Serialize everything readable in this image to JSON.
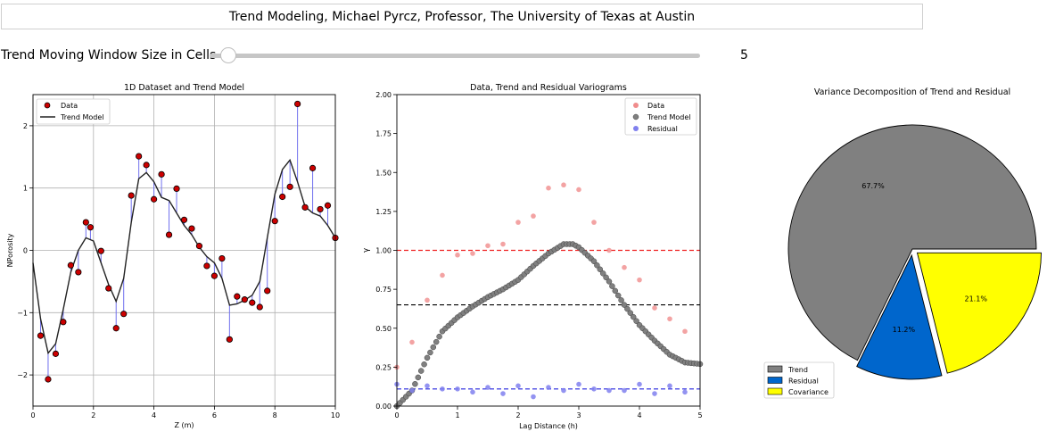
{
  "header": {
    "title": "Trend Modeling, Michael Pyrcz, Professor, The University of Texas at Austin"
  },
  "slider": {
    "label": "Trend Moving Window Size in Cells",
    "value": 5,
    "value_text": "5",
    "min": 1,
    "max": 100
  },
  "chart_data": [
    {
      "type": "scatter",
      "title": "1D Dataset and Trend Model",
      "xlabel": "Z (m)",
      "ylabel": "NPorosity",
      "xlim": [
        0,
        10
      ],
      "ylim": [
        -2.5,
        2.5
      ],
      "xticks": [
        0,
        2,
        4,
        6,
        8,
        10
      ],
      "yticks": [
        -2,
        -1,
        0,
        1,
        2
      ],
      "grid": true,
      "legend": "top-left",
      "series": [
        {
          "name": "Data",
          "color": "#cc0000",
          "x": [
            0.25,
            0.5,
            0.75,
            1.0,
            1.25,
            1.5,
            1.75,
            1.9,
            2.25,
            2.5,
            2.75,
            3.0,
            3.25,
            3.5,
            3.75,
            4.0,
            4.25,
            4.5,
            4.75,
            5.0,
            5.25,
            5.5,
            5.75,
            6.0,
            6.25,
            6.5,
            6.75,
            7.0,
            7.25,
            7.5,
            7.75,
            8.0,
            8.25,
            8.5,
            8.75,
            9.0,
            9.25,
            9.5,
            9.75,
            10.0
          ],
          "y": [
            -1.37,
            -2.07,
            -1.66,
            -1.15,
            -0.24,
            -0.35,
            0.45,
            0.37,
            -0.01,
            -0.61,
            -1.25,
            -1.02,
            0.88,
            1.51,
            1.37,
            0.82,
            1.22,
            0.25,
            0.99,
            0.49,
            0.35,
            0.07,
            -0.25,
            -0.41,
            -0.13,
            -1.43,
            -0.74,
            -0.79,
            -0.84,
            -0.91,
            -0.65,
            0.47,
            0.86,
            1.02,
            2.35,
            0.69,
            1.32,
            0.66,
            0.72,
            0.2
          ]
        },
        {
          "name": "Trend Model",
          "color": "#222222",
          "x": [
            0,
            0.25,
            0.5,
            0.75,
            1.0,
            1.25,
            1.5,
            1.75,
            2.0,
            2.25,
            2.5,
            2.75,
            3.0,
            3.25,
            3.5,
            3.75,
            4.0,
            4.25,
            4.5,
            4.75,
            5.0,
            5.25,
            5.5,
            5.75,
            6.0,
            6.25,
            6.5,
            6.75,
            7.0,
            7.25,
            7.5,
            7.75,
            8.0,
            8.25,
            8.5,
            8.75,
            9.0,
            9.25,
            9.5,
            9.75,
            10.0
          ],
          "y": [
            -0.2,
            -1.1,
            -1.65,
            -1.5,
            -0.95,
            -0.35,
            0.0,
            0.2,
            0.15,
            -0.2,
            -0.55,
            -0.82,
            -0.45,
            0.45,
            1.15,
            1.25,
            1.1,
            0.85,
            0.8,
            0.6,
            0.4,
            0.25,
            0.05,
            -0.1,
            -0.2,
            -0.45,
            -0.88,
            -0.86,
            -0.8,
            -0.72,
            -0.5,
            0.2,
            0.9,
            1.3,
            1.45,
            1.1,
            0.7,
            0.6,
            0.55,
            0.4,
            0.2
          ]
        }
      ]
    },
    {
      "type": "scatter",
      "title": "Data, Trend and Residual Variograms",
      "xlabel": "Lag Distance (h)",
      "ylabel": "γ",
      "xlim": [
        0,
        5
      ],
      "ylim": [
        0,
        2.0
      ],
      "xticks": [
        0,
        1,
        2,
        3,
        4,
        5
      ],
      "yticks": [
        0.0,
        0.25,
        0.5,
        0.75,
        1.0,
        1.25,
        1.5,
        1.75,
        2.0
      ],
      "legend": "top-right",
      "hlines": [
        {
          "y": 1.0,
          "color": "#ee2222"
        },
        {
          "y": 0.65,
          "color": "#000000"
        },
        {
          "y": 0.11,
          "color": "#2222dd"
        }
      ],
      "series": [
        {
          "name": "Data",
          "color": "#f08c8c",
          "x": [
            0,
            0.25,
            0.5,
            0.75,
            1.0,
            1.25,
            1.5,
            1.75,
            2.0,
            2.25,
            2.5,
            2.75,
            3.0,
            3.25,
            3.5,
            3.75,
            4.0,
            4.25,
            4.5,
            4.75
          ],
          "y": [
            0.25,
            0.41,
            0.68,
            0.84,
            0.97,
            0.98,
            1.03,
            1.04,
            1.18,
            1.22,
            1.4,
            1.42,
            1.39,
            1.18,
            1.0,
            0.89,
            0.81,
            0.63,
            0.56,
            0.48
          ]
        },
        {
          "name": "Trend Model",
          "color": "#808080",
          "x": [
            0,
            0.25,
            0.5,
            0.75,
            1.0,
            1.25,
            1.5,
            1.75,
            2.0,
            2.25,
            2.5,
            2.75,
            2.9,
            3.0,
            3.25,
            3.5,
            3.75,
            4.0,
            4.25,
            4.5,
            4.75,
            5.0
          ],
          "y": [
            0.0,
            0.1,
            0.31,
            0.48,
            0.57,
            0.64,
            0.7,
            0.75,
            0.81,
            0.9,
            0.98,
            1.04,
            1.04,
            1.02,
            0.93,
            0.8,
            0.65,
            0.52,
            0.42,
            0.33,
            0.28,
            0.27
          ]
        },
        {
          "name": "Residual",
          "color": "#8080ee",
          "x": [
            0,
            0.25,
            0.5,
            0.75,
            1.0,
            1.25,
            1.5,
            1.75,
            2.0,
            2.25,
            2.5,
            2.75,
            3.0,
            3.25,
            3.5,
            3.75,
            4.0,
            4.25,
            4.5,
            4.75
          ],
          "y": [
            0.14,
            0.1,
            0.13,
            0.11,
            0.11,
            0.09,
            0.12,
            0.08,
            0.13,
            0.06,
            0.12,
            0.1,
            0.14,
            0.11,
            0.1,
            0.1,
            0.14,
            0.08,
            0.13,
            0.09
          ]
        }
      ]
    },
    {
      "type": "pie",
      "title": "Variance Decomposition of Trend and Residual",
      "legend": "bottom-left",
      "slices": [
        {
          "label": "Trend",
          "value": 67.7,
          "pct_label": "67.7%",
          "color": "#808080"
        },
        {
          "label": "Residual",
          "value": 11.2,
          "pct_label": "11.2%",
          "color": "#0066cc"
        },
        {
          "label": "Covariance",
          "value": 21.1,
          "pct_label": "21.1%",
          "color": "#ffff00"
        }
      ]
    }
  ]
}
